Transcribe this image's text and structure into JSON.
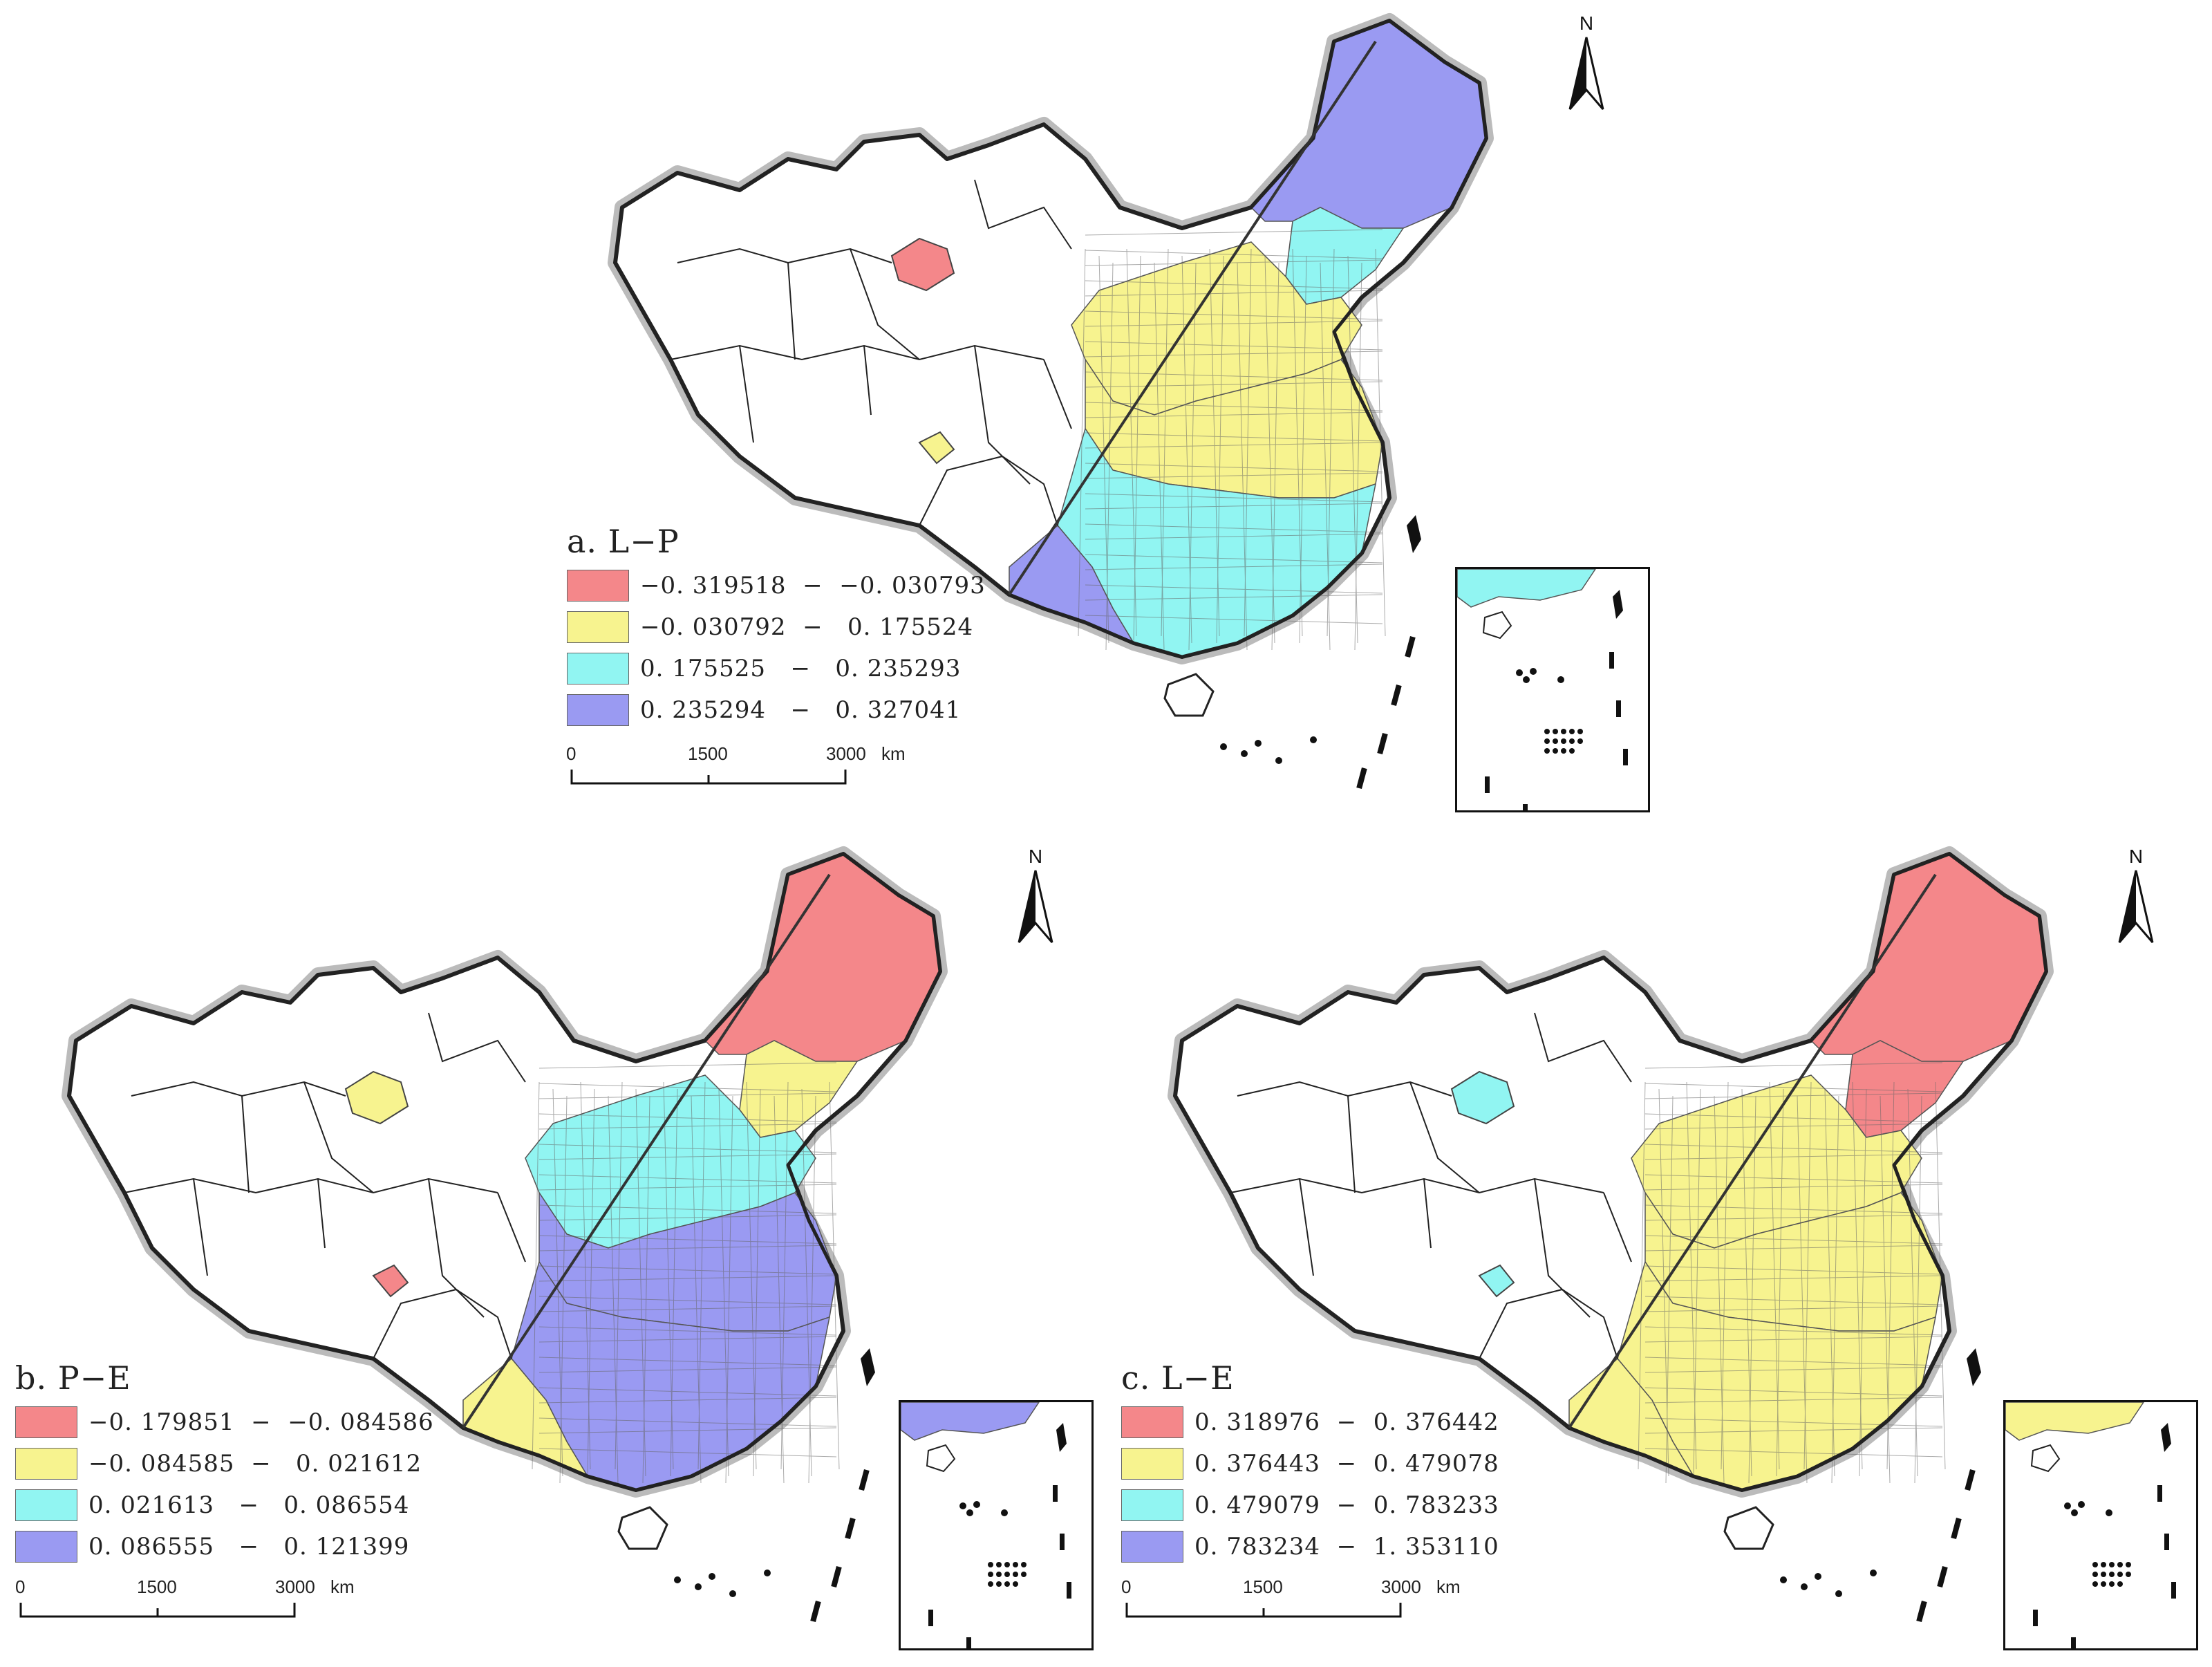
{
  "colors": {
    "class1": "#f4878a",
    "class2": "#f7f38f",
    "class3": "#91f5f2",
    "class4": "#9a9af2",
    "none": "#ffffff",
    "outline": "#222222",
    "division_line": "#333333"
  },
  "icons": {
    "north_arrow": "north-arrow-icon"
  },
  "panels": [
    {
      "id": "a",
      "title": "a. L−P",
      "legend": [
        {
          "range": "−0. 319518  −  −0. 030793",
          "color": "#f4878a"
        },
        {
          "range": "−0. 030792  −   0. 175524",
          "color": "#f7f38f"
        },
        {
          "range": "0. 175525   −   0. 235293",
          "color": "#91f5f2"
        },
        {
          "range": "0. 235294   −   0. 327041",
          "color": "#9a9af2"
        }
      ],
      "scale": {
        "ticks": [
          "0",
          "1500",
          "3000"
        ],
        "unit": "km"
      },
      "north": "N",
      "fills": {
        "northeast_top": "class4",
        "northeast_bottom": "class3",
        "north": "class2",
        "central_east": "class2",
        "south": "class3",
        "southwest": "class4",
        "xinjiang_patch": "class1",
        "tibet_patch": "class2",
        "inset_band": "class3"
      }
    },
    {
      "id": "b",
      "title": "b. P−E",
      "legend": [
        {
          "range": "−0. 179851  −  −0. 084586",
          "color": "#f4878a"
        },
        {
          "range": "−0. 084585  −   0. 021612",
          "color": "#f7f38f"
        },
        {
          "range": "0. 021613   −   0. 086554",
          "color": "#91f5f2"
        },
        {
          "range": "0. 086555   −   0. 121399",
          "color": "#9a9af2"
        }
      ],
      "scale": {
        "ticks": [
          "0",
          "1500",
          "3000"
        ],
        "unit": "km"
      },
      "north": "N",
      "fills": {
        "northeast_top": "class1",
        "northeast_bottom": "class2",
        "north": "class3",
        "central_east": "class4",
        "south": "class4",
        "southwest": "class2",
        "xinjiang_patch": "class2",
        "tibet_patch": "class1",
        "inset_band": "class4"
      }
    },
    {
      "id": "c",
      "title": "c. L−E",
      "legend": [
        {
          "range": "0. 318976  −  0. 376442",
          "color": "#f4878a"
        },
        {
          "range": "0. 376443  −  0. 479078",
          "color": "#f7f38f"
        },
        {
          "range": "0. 479079  −  0. 783233",
          "color": "#91f5f2"
        },
        {
          "range": "0. 783234  −  1. 353110",
          "color": "#9a9af2"
        }
      ],
      "scale": {
        "ticks": [
          "0",
          "1500",
          "3000"
        ],
        "unit": "km"
      },
      "north": "N",
      "fills": {
        "northeast_top": "class1",
        "northeast_bottom": "class1",
        "north": "class2",
        "central_east": "class2",
        "south": "class2",
        "southwest": "class2",
        "xinjiang_patch": "class3",
        "tibet_patch": "class3",
        "inset_band": "class2"
      }
    }
  ]
}
